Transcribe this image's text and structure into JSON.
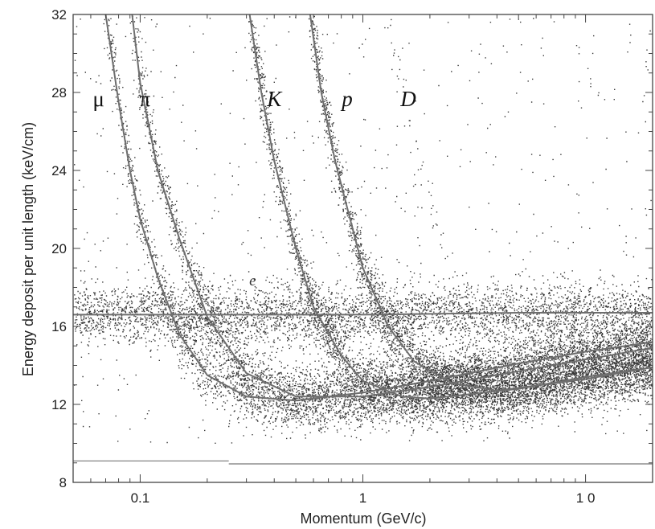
{
  "chart_data": {
    "type": "scatter",
    "xlabel": "Momentum (GeV/c)",
    "ylabel": "Energy deposit per unit length (keV/cm)",
    "xscale": "log",
    "xlim": [
      0.05,
      20
    ],
    "ylim": [
      8,
      32
    ],
    "x_ticks": [
      {
        "value": 0.1,
        "label": "0.1"
      },
      {
        "value": 1,
        "label": "1"
      },
      {
        "value": 10,
        "label": "1 0"
      }
    ],
    "y_ticks": [
      {
        "value": 8,
        "label": "8"
      },
      {
        "value": 12,
        "label": "12"
      },
      {
        "value": 16,
        "label": "16"
      },
      {
        "value": 20,
        "label": "20"
      },
      {
        "value": 24,
        "label": "24"
      },
      {
        "value": 28,
        "label": "28"
      },
      {
        "value": 32,
        "label": "32"
      }
    ],
    "series": [
      {
        "name": "μ",
        "label_at": [
          0.065,
          27.3
        ],
        "curve": [
          [
            0.07,
            32
          ],
          [
            0.08,
            27.5
          ],
          [
            0.09,
            24
          ],
          [
            0.1,
            21.5
          ],
          [
            0.12,
            18.5
          ],
          [
            0.15,
            15.6
          ],
          [
            0.2,
            13.5
          ],
          [
            0.3,
            12.4
          ],
          [
            0.5,
            12.2
          ],
          [
            1,
            12.6
          ],
          [
            2,
            13.2
          ],
          [
            5,
            14.1
          ],
          [
            10,
            14.7
          ],
          [
            20,
            15.2
          ]
        ]
      },
      {
        "name": "π",
        "label_at": [
          0.105,
          27.3
        ],
        "curve": [
          [
            0.092,
            32
          ],
          [
            0.1,
            28.5
          ],
          [
            0.12,
            24
          ],
          [
            0.15,
            20.5
          ],
          [
            0.2,
            16.5
          ],
          [
            0.3,
            13.6
          ],
          [
            0.5,
            12.4
          ],
          [
            1,
            12.4
          ],
          [
            2,
            12.9
          ],
          [
            5,
            13.7
          ],
          [
            10,
            14.3
          ],
          [
            20,
            14.9
          ]
        ]
      },
      {
        "name": "K",
        "label_at": [
          0.4,
          27.3
        ],
        "curve": [
          [
            0.31,
            32
          ],
          [
            0.35,
            28
          ],
          [
            0.4,
            24.5
          ],
          [
            0.5,
            20
          ],
          [
            0.6,
            17
          ],
          [
            0.8,
            14.5
          ],
          [
            1,
            13.2
          ],
          [
            1.5,
            12.4
          ],
          [
            2,
            12.3
          ],
          [
            5,
            12.8
          ],
          [
            10,
            13.4
          ],
          [
            20,
            13.9
          ]
        ]
      },
      {
        "name": "p",
        "label_at": [
          0.85,
          27.3
        ],
        "curve": [
          [
            0.58,
            32
          ],
          [
            0.65,
            28
          ],
          [
            0.75,
            24.5
          ],
          [
            0.9,
            21
          ],
          [
            1,
            19
          ],
          [
            1.3,
            16
          ],
          [
            1.7,
            14.2
          ],
          [
            2.5,
            13.1
          ],
          [
            4,
            12.7
          ],
          [
            10,
            13.3
          ],
          [
            20,
            13.9
          ]
        ]
      },
      {
        "name": "D",
        "label_at": [
          1.6,
          27.3
        ],
        "points": [
          [
            1.3,
            31.5
          ],
          [
            1.4,
            30.2
          ],
          [
            1.45,
            29.1
          ],
          [
            1.5,
            28.8
          ],
          [
            1.6,
            26.5
          ],
          [
            1.7,
            25.2
          ],
          [
            1.8,
            24.1
          ],
          [
            1.7,
            23.5
          ],
          [
            1.9,
            22.6
          ],
          [
            2.0,
            21.9
          ],
          [
            2.1,
            21.2
          ],
          [
            2.2,
            20.3
          ],
          [
            2.4,
            19.4
          ],
          [
            2.6,
            18.7
          ],
          [
            2.9,
            17.9
          ]
        ]
      },
      {
        "name": "e",
        "label_at": [
          0.32,
          18.1
        ],
        "curve": [
          [
            0.05,
            16.6
          ],
          [
            0.1,
            16.6
          ],
          [
            1,
            16.6
          ],
          [
            5,
            16.7
          ],
          [
            20,
            16.7
          ]
        ]
      }
    ],
    "baselines": [
      {
        "y": 9.1,
        "x": [
          0.05,
          0.25
        ]
      },
      {
        "y": 8.95,
        "x": [
          0.25,
          20
        ]
      }
    ]
  }
}
